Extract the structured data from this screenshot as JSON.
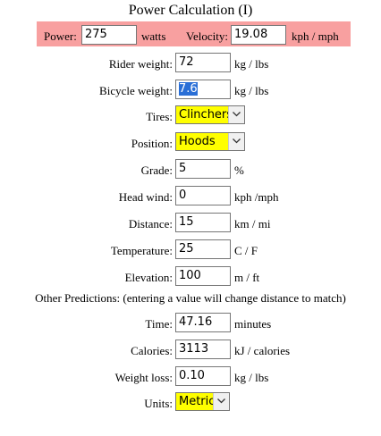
{
  "title": "Power Calculation (I)",
  "power": {
    "label": "Power:",
    "value": "275",
    "unit": "watts"
  },
  "velocity": {
    "label": "Velocity:",
    "value": "19.08",
    "unit": "kph / mph"
  },
  "rider_weight": {
    "label": "Rider weight:",
    "value": "72",
    "unit": "kg / lbs"
  },
  "bicycle_weight": {
    "label": "Bicycle weight:",
    "value": "7.6",
    "unit": "kg / lbs"
  },
  "tires": {
    "label": "Tires:",
    "selected": "Clinchers"
  },
  "position": {
    "label": "Position:",
    "selected": "Hoods"
  },
  "grade": {
    "label": "Grade:",
    "value": "5",
    "unit": "%"
  },
  "head_wind": {
    "label": "Head wind:",
    "value": "0",
    "unit": "kph /mph"
  },
  "distance": {
    "label": "Distance:",
    "value": "15",
    "unit": "km / mi"
  },
  "temperature": {
    "label": "Temperature:",
    "value": "25",
    "unit": "C / F"
  },
  "elevation": {
    "label": "Elevation:",
    "value": "100",
    "unit": "m / ft"
  },
  "predictions_note": "Other Predictions: (entering a value will change distance to match)",
  "time": {
    "label": "Time:",
    "value": "47.16",
    "unit": "minutes"
  },
  "calories": {
    "label": "Calories:",
    "value": "3113",
    "unit": "kJ / calories"
  },
  "weight_loss": {
    "label": "Weight loss:",
    "value": "0.10",
    "unit": "kg / lbs"
  },
  "units": {
    "label": "Units:",
    "selected": "Metric"
  },
  "colors": {
    "banner": "#f8a0a0",
    "dropdown_bg": "#ffff00",
    "selection": "#2a6fd6"
  }
}
